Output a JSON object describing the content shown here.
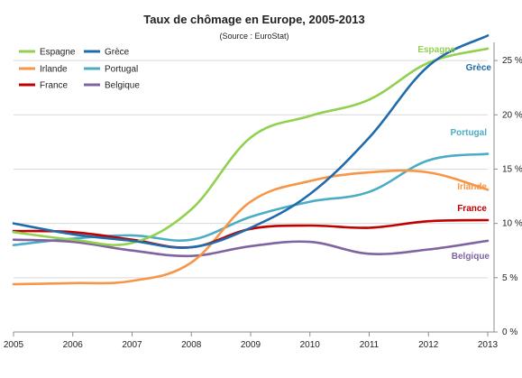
{
  "chart_data": {
    "type": "line",
    "title": "Taux de chômage en Europe, 2005-2013",
    "subtitle": "(Source : EuroStat)",
    "xlabel": "",
    "ylabel": "",
    "x": [
      2005,
      2006,
      2007,
      2008,
      2009,
      2010,
      2011,
      2012,
      2013
    ],
    "xlim": [
      2005,
      2013
    ],
    "ylim": [
      0,
      27.5
    ],
    "y_ticks": [
      0,
      5,
      10,
      15,
      20,
      25
    ],
    "y_tick_labels": [
      "0 %",
      "5 %",
      "10 %",
      "15 %",
      "20 %",
      "25 %"
    ],
    "x_tick_labels": [
      "2005",
      "2006",
      "2007",
      "2008",
      "2009",
      "2010",
      "2011",
      "2012",
      "2013"
    ],
    "grid": "horizontal",
    "legend_placement": "top-left",
    "series": [
      {
        "name": "Espagne",
        "color": "#92d050",
        "end_label": "Espagne",
        "values": [
          9.2,
          8.5,
          8.2,
          11.3,
          17.9,
          19.9,
          21.4,
          24.8,
          26.1
        ]
      },
      {
        "name": "Grèce",
        "color": "#1f6bab",
        "end_label": "Grèce",
        "values": [
          10.0,
          9.0,
          8.4,
          7.8,
          9.6,
          12.7,
          17.9,
          24.5,
          27.3
        ]
      },
      {
        "name": "Irlande",
        "color": "#f79646",
        "end_label": "Irlande",
        "values": [
          4.4,
          4.5,
          4.7,
          6.4,
          12.0,
          13.9,
          14.7,
          14.7,
          13.1
        ]
      },
      {
        "name": "Portugal",
        "color": "#4bacc6",
        "end_label": "Portugal",
        "values": [
          8.0,
          8.6,
          8.9,
          8.5,
          10.6,
          12.0,
          12.9,
          15.8,
          16.4
        ]
      },
      {
        "name": "France",
        "color": "#c00000",
        "end_label": "France",
        "values": [
          9.3,
          9.2,
          8.5,
          7.8,
          9.5,
          9.8,
          9.6,
          10.2,
          10.3
        ]
      },
      {
        "name": "Belgique",
        "color": "#8064a2",
        "end_label": "Belgique",
        "values": [
          8.5,
          8.3,
          7.5,
          7.0,
          7.9,
          8.3,
          7.2,
          7.6,
          8.4
        ]
      }
    ]
  }
}
